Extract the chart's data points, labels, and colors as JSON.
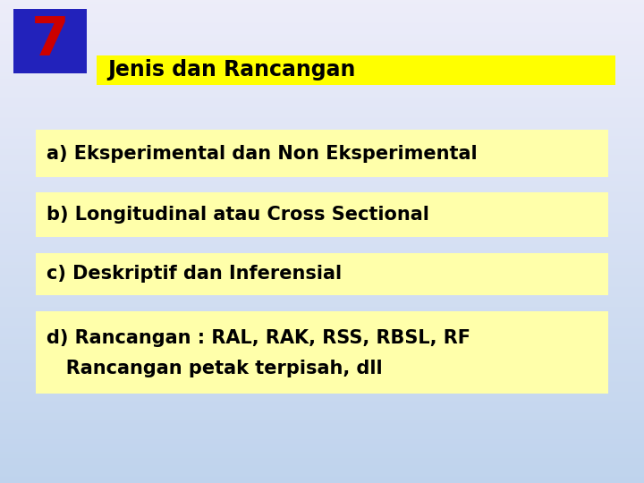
{
  "title_number": "7",
  "title_number_color": "#cc0000",
  "title_number_bg": "#2222bb",
  "title_text": "Jenis dan Rancangan",
  "title_bg": "#ffff00",
  "title_text_color": "#000000",
  "items": [
    "a) Eksperimental dan Non Eksperimental",
    "b) Longitudinal atau Cross Sectional",
    "c) Deskriptif dan Inferensial",
    "d) Rancangan : RAL, RAK, RSS, RBSL, RF",
    "   Rancangan petak terpisah, dll"
  ],
  "item_bg": "#ffffaa",
  "item_text_color": "#000000",
  "figsize": [
    7.2,
    5.4
  ],
  "dpi": 100
}
